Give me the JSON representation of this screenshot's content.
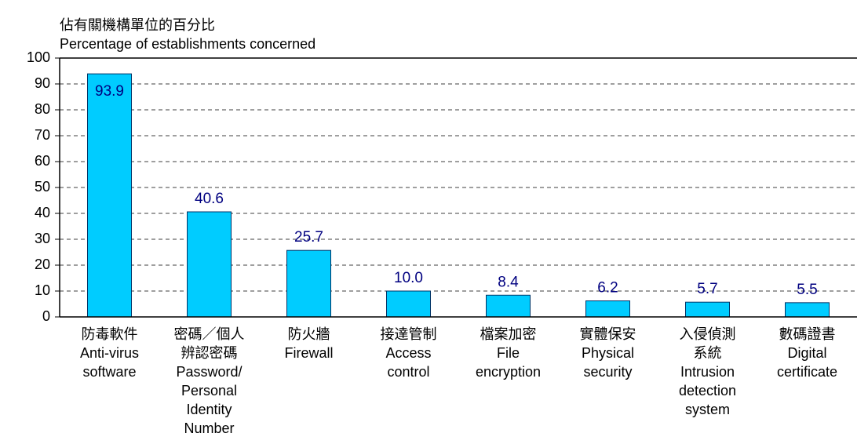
{
  "chart_data": {
    "type": "bar",
    "title": [
      "佔有關機構單位的百分比",
      "Percentage of establishments concerned"
    ],
    "categories": [
      [
        "防毒軟件",
        "Anti-virus",
        "software"
      ],
      [
        "密碼／個人",
        "辨認密碼",
        "Password/",
        "Personal",
        "Identity",
        "Number"
      ],
      [
        "防火牆",
        "Firewall"
      ],
      [
        "接達管制",
        "Access",
        "control"
      ],
      [
        "檔案加密",
        "File",
        "encryption"
      ],
      [
        "實體保安",
        "Physical",
        "security"
      ],
      [
        "入侵偵測",
        "系統",
        "Intrusion",
        "detection",
        "system"
      ],
      [
        "數碼證書",
        "Digital",
        "certificate"
      ]
    ],
    "values": [
      93.9,
      40.6,
      25.7,
      10,
      8.4,
      6.2,
      5.7,
      5.5
    ],
    "value_labels": [
      "93.9",
      "40.6",
      "25.7",
      "10.0",
      "8.4",
      "6.2",
      "5.7",
      "5.5"
    ],
    "color": "#00ccff",
    "ylim": [
      0,
      100
    ],
    "yticks": [
      0,
      10,
      20,
      30,
      40,
      50,
      60,
      70,
      80,
      90,
      100
    ],
    "grid": true
  }
}
